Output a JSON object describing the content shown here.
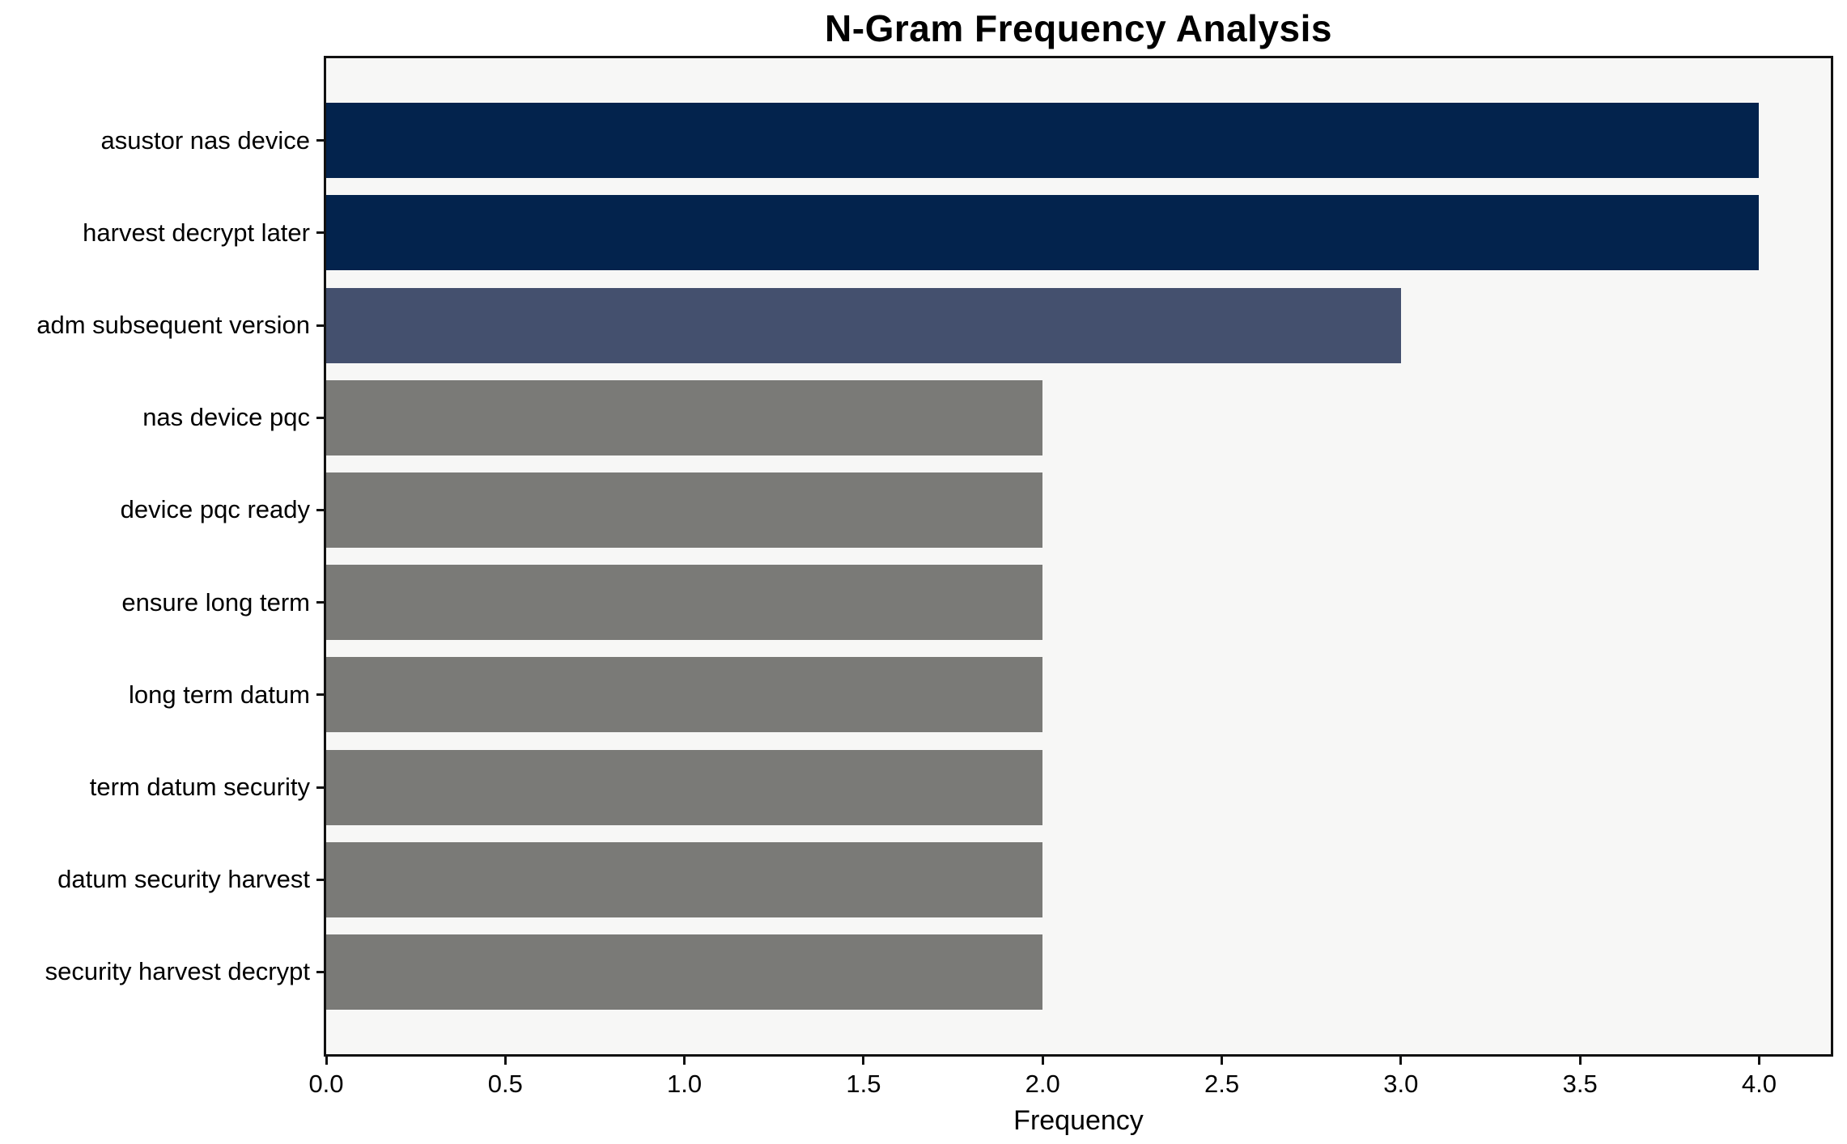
{
  "title": "N-Gram Frequency Analysis",
  "chart_data": {
    "type": "bar",
    "orientation": "horizontal",
    "title": "N-Gram Frequency Analysis",
    "xlabel": "Frequency",
    "ylabel": "",
    "categories": [
      "asustor nas device",
      "harvest decrypt later",
      "adm subsequent version",
      "nas device pqc",
      "device pqc ready",
      "ensure long term",
      "long term datum",
      "term datum security",
      "datum security harvest",
      "security harvest decrypt"
    ],
    "values": [
      4,
      4,
      3,
      2,
      2,
      2,
      2,
      2,
      2,
      2
    ],
    "bar_colors": [
      "#03234d",
      "#03234d",
      "#44506e",
      "#7a7a77",
      "#7a7a77",
      "#7a7a77",
      "#7a7a77",
      "#7a7a77",
      "#7a7a77",
      "#7a7a77"
    ],
    "xlim": [
      0,
      4.2
    ],
    "xticks": [
      0.0,
      0.5,
      1.0,
      1.5,
      2.0,
      2.5,
      3.0,
      3.5,
      4.0
    ],
    "xtick_labels": [
      "0.0",
      "0.5",
      "1.0",
      "1.5",
      "2.0",
      "2.5",
      "3.0",
      "3.5",
      "4.0"
    ],
    "grid": false,
    "legend": "none",
    "plot_background": "#f7f7f6",
    "figure_background": "#ffffff",
    "spine_color": "#111111"
  }
}
